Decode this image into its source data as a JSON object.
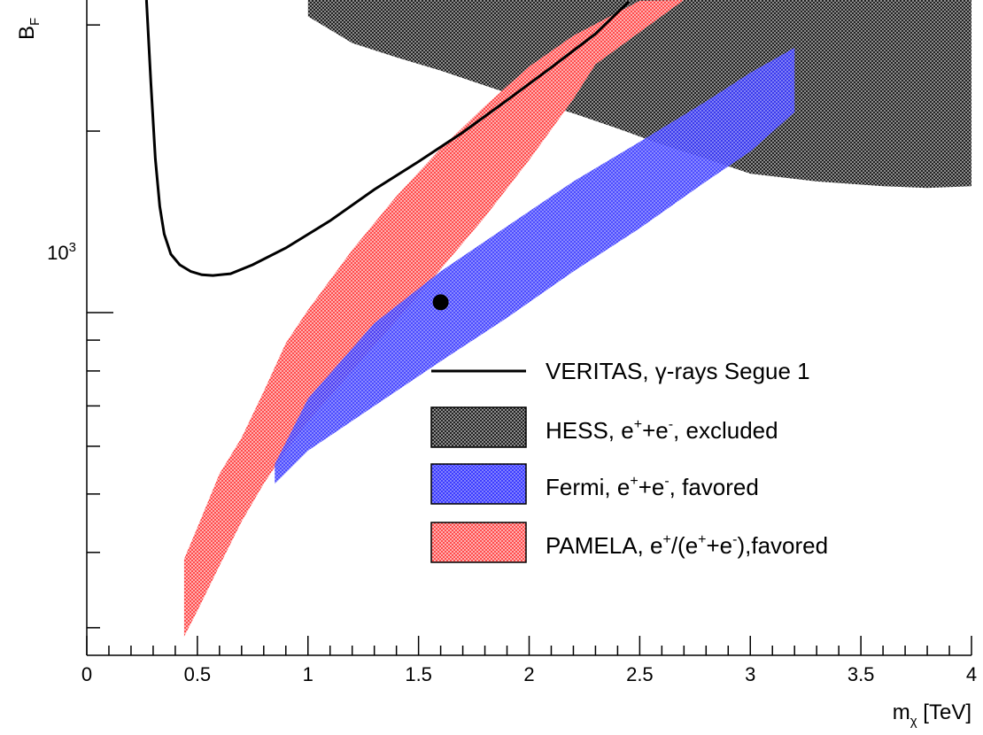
{
  "chart_data": {
    "type": "area",
    "xlabel": "m_χ [TeV]",
    "xlabel_main": "m",
    "xlabel_sub": "χ",
    "xlabel_tail": " [TeV]",
    "ylabel": "B_F",
    "ylabel_main": "B",
    "ylabel_sub": "F",
    "yscale": "log",
    "xlim": [
      0,
      4
    ],
    "ylim": [
      270,
      3300
    ],
    "x_ticks": [
      0,
      0.5,
      1,
      1.5,
      2,
      2.5,
      3,
      3.5,
      4
    ],
    "x_tick_labels": [
      "0",
      "0.5",
      "1",
      "1.5",
      "2",
      "2.5",
      "3",
      "3.5",
      "4"
    ],
    "y_major_tick": 1000,
    "y_major_label_base": "10",
    "y_major_label_exp": "3",
    "y_minor_ticks": [
      300,
      400,
      500,
      600,
      700,
      800,
      900,
      2000,
      3000
    ],
    "grid": false,
    "legend_placement": "bottom-right",
    "colors": {
      "veritas": "#000000",
      "hess": "#4d4d4d",
      "fermi": "#5b5bff",
      "pamela": "#ff6b6b",
      "point": "#000000"
    },
    "series": [
      {
        "name": "VERITAS, γ-rays Segue 1",
        "legend_parts": [
          "VERITAS, ",
          "γ",
          "-rays Segue 1"
        ],
        "kind": "line",
        "x": [
          0.27,
          0.29,
          0.31,
          0.33,
          0.35,
          0.38,
          0.42,
          0.47,
          0.52,
          0.57,
          0.65,
          0.75,
          0.9,
          1.1,
          1.3,
          1.5,
          1.7,
          1.9,
          2.1,
          2.3,
          2.45
        ],
        "y": [
          3300,
          2400,
          1800,
          1500,
          1350,
          1250,
          1200,
          1170,
          1155,
          1152,
          1160,
          1200,
          1280,
          1420,
          1600,
          1780,
          1990,
          2250,
          2550,
          2900,
          3280
        ]
      },
      {
        "name": "HESS, e⁺+e⁻, excluded",
        "legend_parts": [
          "HESS, e",
          "+",
          "+e",
          "-",
          ", excluded"
        ],
        "kind": "band",
        "x_upper": [
          1.0,
          4.0
        ],
        "upper": [
          3300,
          3300
        ],
        "x_lower": [
          1.0,
          1.2,
          1.4,
          1.6,
          1.8,
          2.0,
          2.2,
          2.4,
          2.6,
          2.8,
          3.0,
          3.3,
          3.6,
          3.8,
          4.0
        ],
        "lower": [
          3100,
          2800,
          2650,
          2520,
          2380,
          2250,
          2140,
          2020,
          1900,
          1800,
          1700,
          1650,
          1620,
          1610,
          1620
        ]
      },
      {
        "name": "Fermi, e⁺+e⁻, favored",
        "legend_parts": [
          "Fermi, e",
          "+",
          "+e",
          "-",
          ", favored"
        ],
        "kind": "band",
        "x_upper": [
          0.85,
          1.0,
          1.3,
          1.6,
          1.9,
          2.2,
          2.5,
          2.8,
          3.0,
          3.2
        ],
        "upper": [
          560,
          720,
          960,
          1170,
          1390,
          1650,
          1920,
          2240,
          2500,
          2750
        ],
        "x_lower": [
          0.85,
          1.0,
          1.3,
          1.6,
          1.9,
          2.2,
          2.5,
          2.8,
          3.0,
          3.2
        ],
        "lower": [
          520,
          590,
          700,
          830,
          980,
          1170,
          1380,
          1650,
          1850,
          2150
        ]
      },
      {
        "name": "PAMELA, e⁺/(e⁺+e⁻),favored",
        "legend_parts": [
          "PAMELA, e",
          "+",
          "/(e",
          "+",
          "+e",
          "-",
          "),favored"
        ],
        "kind": "band",
        "x_upper": [
          0.44,
          0.5,
          0.6,
          0.7,
          0.8,
          0.9,
          1.0,
          1.2,
          1.4,
          1.6,
          1.8,
          2.0,
          2.2,
          2.5,
          2.7
        ],
        "upper": [
          390,
          440,
          540,
          620,
          740,
          890,
          1010,
          1270,
          1560,
          1870,
          2200,
          2560,
          2880,
          3290,
          3300
        ],
        "x_lower": [
          0.44,
          0.5,
          0.6,
          0.7,
          0.8,
          0.9,
          1.0,
          1.2,
          1.4,
          1.6,
          1.8,
          2.0,
          2.2,
          2.3
        ],
        "lower": [
          290,
          320,
          380,
          450,
          520,
          590,
          660,
          800,
          970,
          1180,
          1440,
          1790,
          2260,
          2580
        ]
      }
    ],
    "points": [
      {
        "x": 1.6,
        "y": 1040
      }
    ]
  }
}
